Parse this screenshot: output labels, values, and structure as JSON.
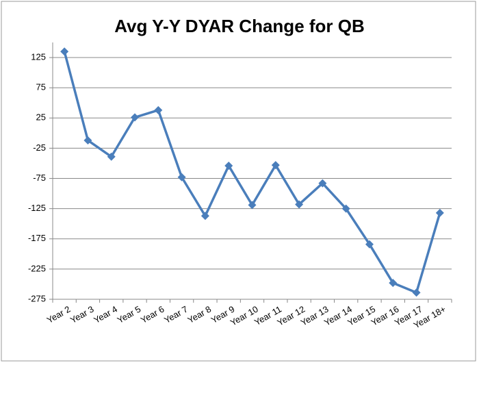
{
  "chart_data": {
    "type": "line",
    "title": "Avg Y-Y DYAR Change for QB",
    "categories": [
      "Year 2",
      "Year 3",
      "Year 4",
      "Year 5",
      "Year 6",
      "Year 7",
      "Year 8",
      "Year 9",
      "Year 10",
      "Year 11",
      "Year 12",
      "Year 13",
      "Year 14",
      "Year 15",
      "Year 16",
      "Year 17",
      "Year 18+"
    ],
    "values": [
      135,
      -12,
      -39,
      26,
      38,
      -73,
      -137,
      -54,
      -119,
      -53,
      -118,
      -83,
      -125,
      -184,
      -248,
      -264,
      -132
    ],
    "color": "#4a7ebb",
    "ylim": [
      -275,
      150
    ],
    "yticks": [
      -275,
      -225,
      -175,
      -125,
      -75,
      -25,
      25,
      75,
      125
    ],
    "grid": true
  }
}
